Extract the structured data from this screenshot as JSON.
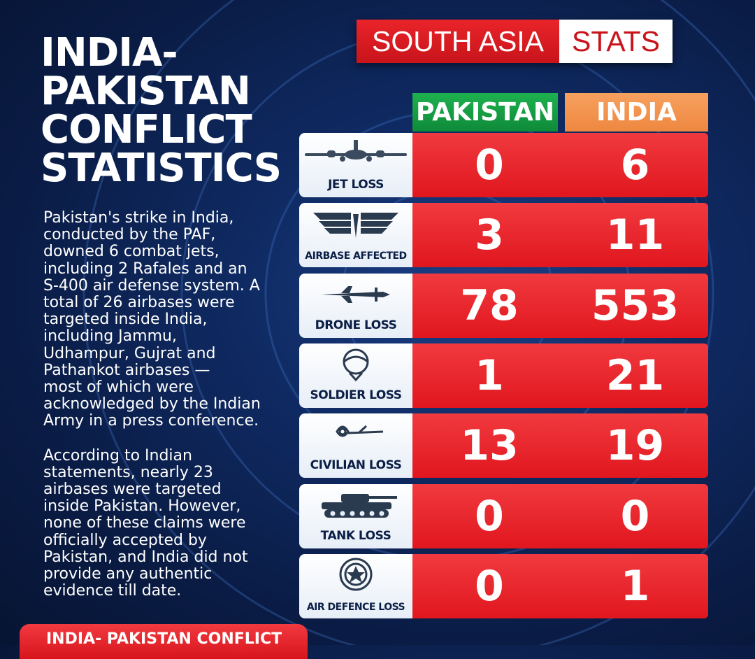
{
  "brand": {
    "left": "SOUTH ASIA",
    "right": "STATS"
  },
  "title": {
    "line1": "INDIA-",
    "line2": "PAKISTAN",
    "line3": "CONFLICT",
    "line4": "STATISTICS"
  },
  "description": {
    "para1": [
      "Pakistan's strike in India,",
      "conducted by the PAF,",
      "downed 6 combat jets,",
      "including 2 Rafales and an",
      "S-400 air defense system. A",
      "total of 26 airbases were",
      "targeted inside India,",
      "including Jammu,",
      "Udhampur, Gujrat and",
      "Pathankot airbases —",
      "most of which were",
      "acknowledged by the Indian",
      "Army in a press conference."
    ],
    "para2": [
      "According to Indian",
      "statements, nearly 23",
      "airbases were targeted",
      "inside Pakistan. However,",
      "none of these claims were",
      "officially accepted by",
      "Pakistan, and India did not",
      "provide any authentic",
      "evidence till date."
    ]
  },
  "columns": {
    "pakistan": "PAKISTAN",
    "india": "INDIA"
  },
  "colors": {
    "red": "#e1161e",
    "green": "#0f8a39",
    "orange": "#ee8740",
    "navy": "#0a1c45"
  },
  "rows": [
    {
      "label": "JET LOSS",
      "icon": "fighter-jet-icon",
      "pakistan": "0",
      "india": "6"
    },
    {
      "label": "AIRBASE AFFECTED",
      "icon": "airbase-wings-icon",
      "pakistan": "3",
      "india": "11"
    },
    {
      "label": "DRONE LOSS",
      "icon": "drone-icon",
      "pakistan": "78",
      "india": "553"
    },
    {
      "label": "SOLDIER LOSS",
      "icon": "soldier-helmet-icon",
      "pakistan": "1",
      "india": "21"
    },
    {
      "label": "CIVILIAN LOSS",
      "icon": "civilian-flower-icon",
      "pakistan": "13",
      "india": "19"
    },
    {
      "label": "TANK LOSS",
      "icon": "tank-icon",
      "pakistan": "0",
      "india": "0"
    },
    {
      "label": "AIR DEFENCE LOSS",
      "icon": "air-defence-emblem-icon",
      "pakistan": "0",
      "india": "1"
    }
  ],
  "footer": {
    "text": "INDIA- PAKISTAN CONFLICT"
  }
}
